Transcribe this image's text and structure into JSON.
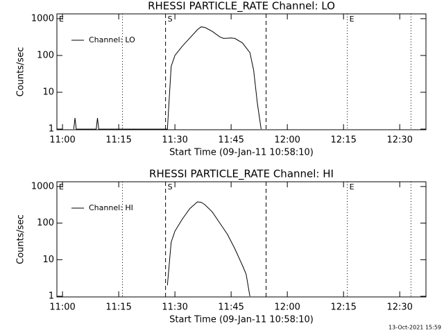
{
  "chart_data": [
    {
      "type": "line",
      "title": "RHESSI PARTICLE_RATE Channel: LO",
      "x_label": "Start Time (09-Jan-11 10:58:10)",
      "y_label": "Counts/sec",
      "log_scale": true,
      "legend": "upper left",
      "xlim": [
        "10:58:30",
        "12:37:00"
      ],
      "ylim": [
        0.96,
        1350
      ],
      "xticks": [
        {
          "value": "11:00:00",
          "label": "11:00"
        },
        {
          "value": "11:15:00",
          "label": "11:15"
        },
        {
          "value": "11:30:00",
          "label": "11:30"
        },
        {
          "value": "11:45:00",
          "label": "11:45"
        },
        {
          "value": "12:00:00",
          "label": "12:00"
        },
        {
          "value": "12:15:00",
          "label": "12:15"
        },
        {
          "value": "12:30:00",
          "label": "12:30"
        }
      ],
      "yticks": [
        1,
        10,
        100,
        1000
      ],
      "markers": [
        {
          "x": "10:58:30",
          "style": "dotted",
          "label": "E"
        },
        {
          "x": "11:16:00",
          "style": "dotted"
        },
        {
          "x": "11:27:30",
          "style": "dashed",
          "label": "S"
        },
        {
          "x": "11:54:20",
          "style": "dashed"
        },
        {
          "x": "12:16:00",
          "style": "dotted",
          "label": "E"
        },
        {
          "x": "12:33:00",
          "style": "dotted"
        }
      ],
      "x": [
        "11:03:00",
        "11:03:20",
        "11:03:40",
        "11:09:00",
        "11:09:20",
        "11:09:40",
        "11:28:00",
        "11:29:00",
        "11:30:00",
        "11:32:00",
        "11:34:00",
        "11:36:00",
        "11:37:00",
        "11:38:00",
        "11:40:00",
        "11:42:00",
        "11:43:00",
        "11:45:00",
        "11:46:00",
        "11:48:00",
        "11:50:00",
        "11:51:00",
        "11:52:00",
        "11:53:00"
      ],
      "series": [
        {
          "name": "Channel: LO",
          "color": "#000000",
          "values": [
            1,
            2,
            1,
            1,
            2,
            1,
            1,
            50,
            100,
            180,
            300,
            500,
            600,
            580,
            450,
            320,
            290,
            300,
            290,
            220,
            120,
            40,
            5,
            1
          ]
        }
      ]
    },
    {
      "type": "line",
      "title": "RHESSI PARTICLE_RATE Channel: HI",
      "x_label": "Start Time (09-Jan-11 10:58:10)",
      "y_label": "Counts/sec",
      "log_scale": true,
      "legend": "upper left",
      "xlim": [
        "10:58:30",
        "12:37:00"
      ],
      "ylim": [
        0.96,
        1350
      ],
      "xticks": [
        {
          "value": "11:00:00",
          "label": "11:00"
        },
        {
          "value": "11:15:00",
          "label": "11:15"
        },
        {
          "value": "11:30:00",
          "label": "11:30"
        },
        {
          "value": "11:45:00",
          "label": "11:45"
        },
        {
          "value": "12:00:00",
          "label": "12:00"
        },
        {
          "value": "12:15:00",
          "label": "12:15"
        },
        {
          "value": "12:30:00",
          "label": "12:30"
        }
      ],
      "yticks": [
        1,
        10,
        100,
        1000
      ],
      "markers": [
        {
          "x": "10:58:30",
          "style": "dotted",
          "label": "E"
        },
        {
          "x": "11:16:00",
          "style": "dotted"
        },
        {
          "x": "11:27:30",
          "style": "dashed",
          "label": "S"
        },
        {
          "x": "11:54:20",
          "style": "dashed"
        },
        {
          "x": "12:16:00",
          "style": "dotted",
          "label": "E"
        },
        {
          "x": "12:33:00",
          "style": "dotted"
        }
      ],
      "x": [
        "11:28:00",
        "11:29:00",
        "11:30:00",
        "11:32:00",
        "11:34:00",
        "11:36:00",
        "11:37:00",
        "11:38:00",
        "11:40:00",
        "11:42:00",
        "11:44:00",
        "11:46:00",
        "11:48:00",
        "11:49:00",
        "11:50:00"
      ],
      "series": [
        {
          "name": "Channel: HI",
          "color": "#000000",
          "values": [
            2,
            30,
            60,
            130,
            250,
            380,
            370,
            320,
            200,
            100,
            50,
            20,
            7,
            4,
            1
          ]
        }
      ]
    }
  ],
  "footer": "13-Oct-2021 15:59"
}
